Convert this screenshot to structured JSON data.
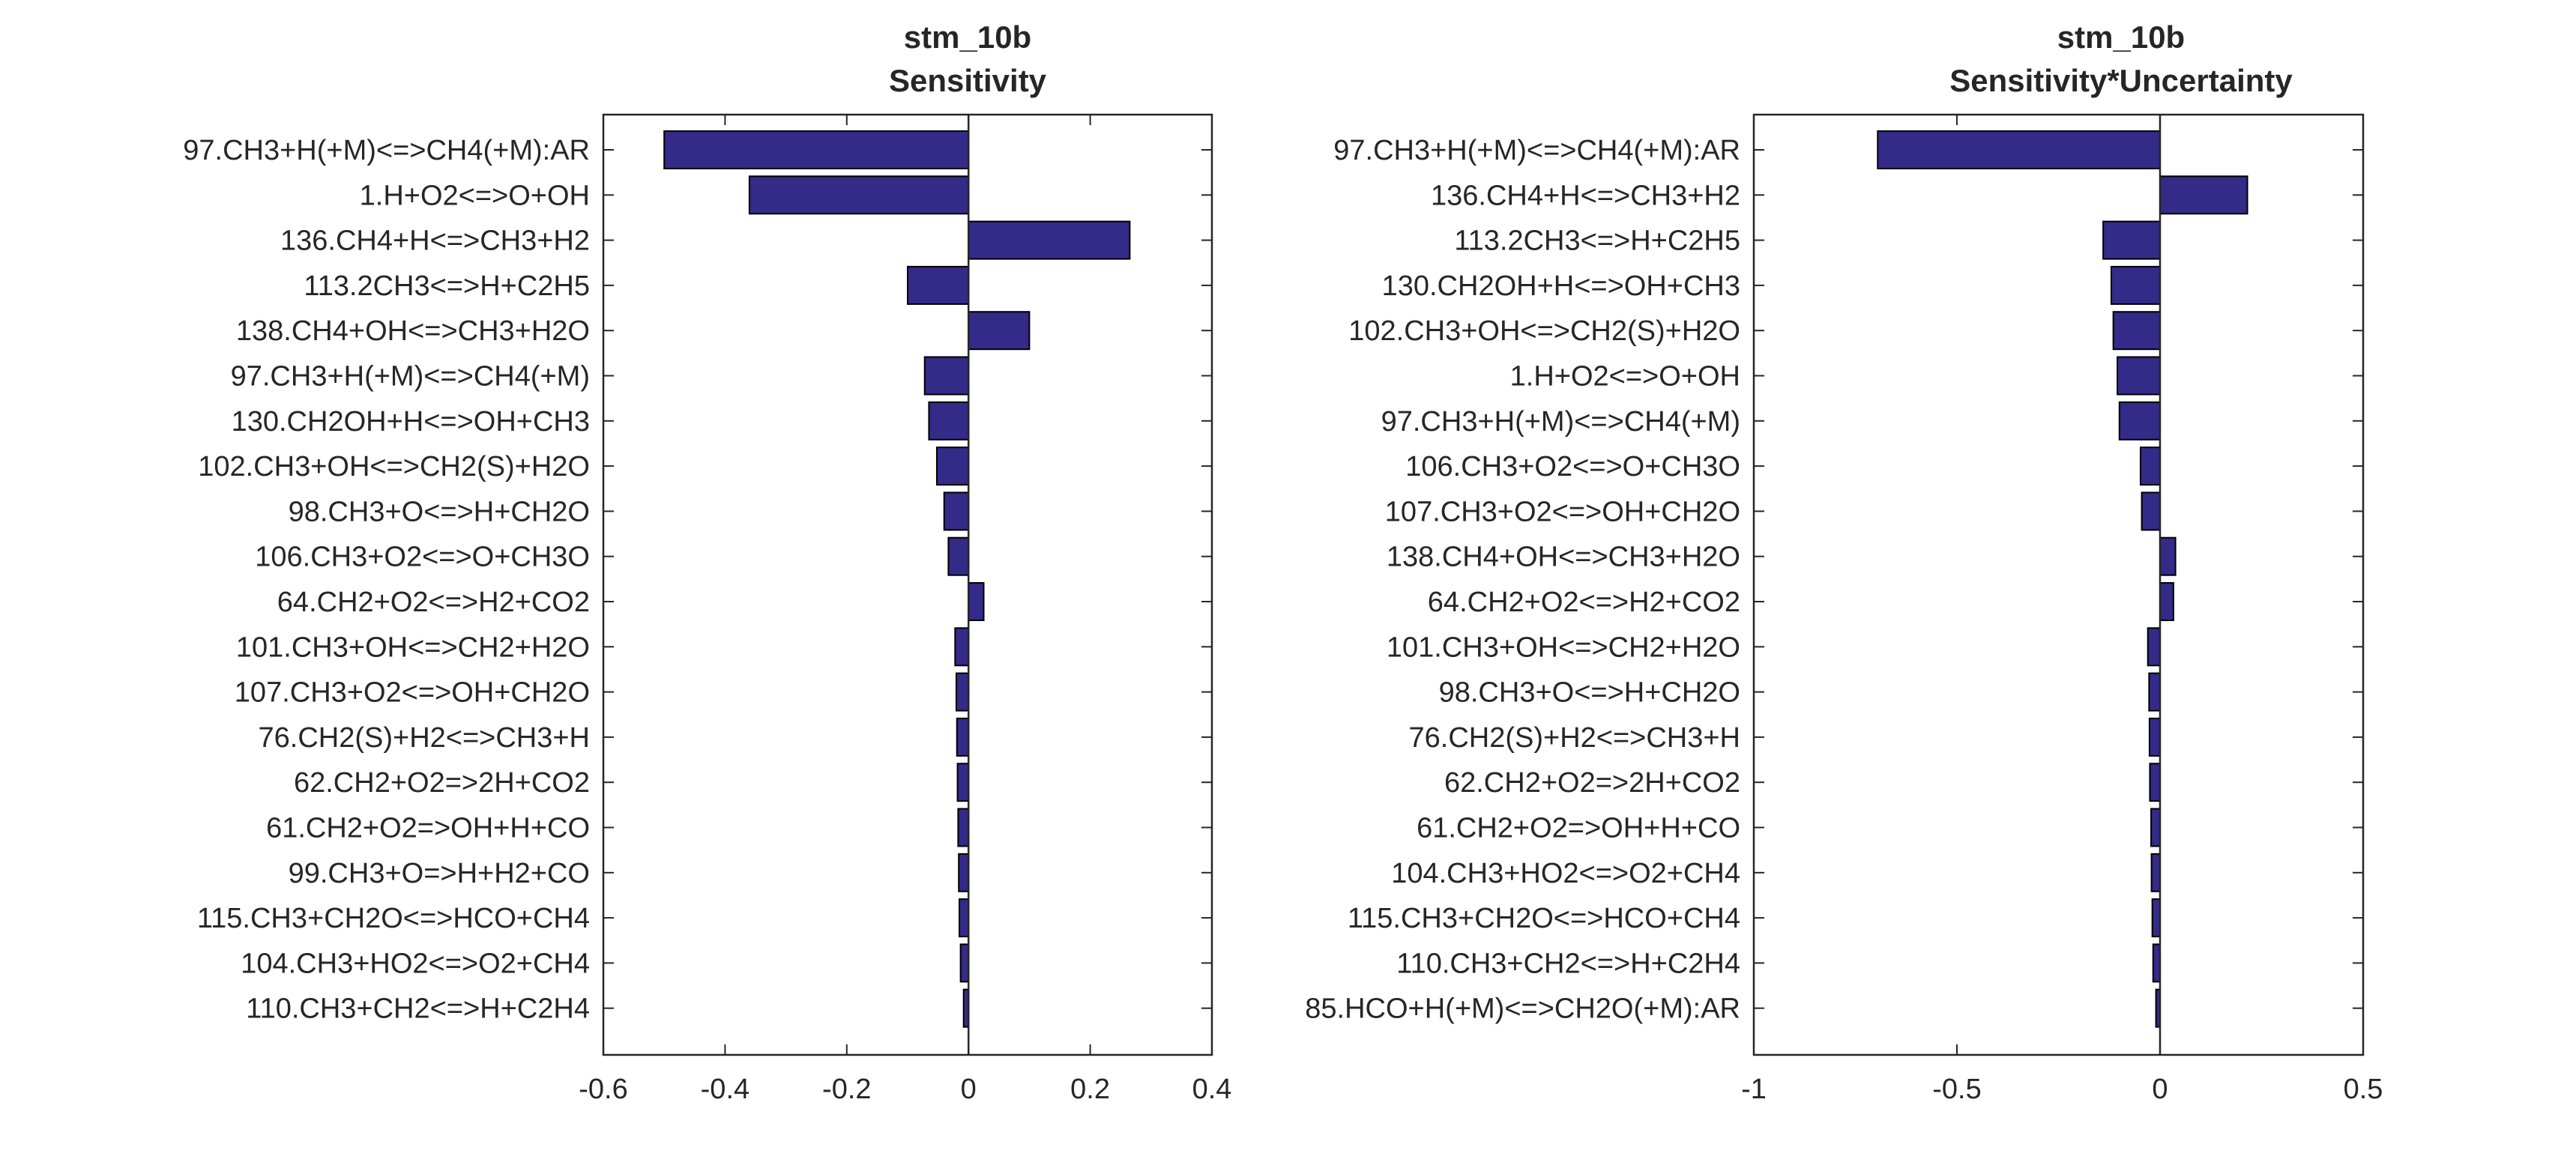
{
  "chart_data": [
    {
      "type": "bar",
      "orientation": "horizontal",
      "title": "stm_10b",
      "subtitle": "Sensitivity",
      "xlim": [
        -0.6,
        0.4
      ],
      "xticks": [
        -0.6,
        -0.4,
        -0.2,
        0,
        0.2,
        0.4
      ],
      "xtick_labels": [
        "-0.6",
        "-0.4",
        "-0.2",
        "0",
        "0.2",
        "0.4"
      ],
      "xlabel": "",
      "ylabel": "",
      "grid": false,
      "bar_color": "#342a87",
      "categories": [
        "97.CH3+H(+M)<=>CH4(+M):AR",
        "1.H+O2<=>O+OH",
        "136.CH4+H<=>CH3+H2",
        "113.2CH3<=>H+C2H5",
        "138.CH4+OH<=>CH3+H2O",
        "97.CH3+H(+M)<=>CH4(+M)",
        "130.CH2OH+H<=>OH+CH3",
        "102.CH3+OH<=>CH2(S)+H2O",
        "98.CH3+O<=>H+CH2O",
        "106.CH3+O2<=>O+CH3O",
        "64.CH2+O2<=>H2+CO2",
        "101.CH3+OH<=>CH2+H2O",
        "107.CH3+O2<=>OH+CH2O",
        "76.CH2(S)+H2<=>CH3+H",
        "62.CH2+O2=>2H+CO2",
        "61.CH2+O2=>OH+H+CO",
        "99.CH3+O=>H+H2+CO",
        "115.CH3+CH2O<=>HCO+CH4",
        "104.CH3+HO2<=>O2+CH4",
        "110.CH3+CH2<=>H+C2H4"
      ],
      "values": [
        -0.5,
        -0.36,
        0.265,
        -0.1,
        0.1,
        -0.072,
        -0.065,
        -0.052,
        -0.04,
        -0.033,
        0.025,
        -0.022,
        -0.02,
        -0.019,
        -0.018,
        -0.017,
        -0.016,
        -0.015,
        -0.013,
        -0.008
      ]
    },
    {
      "type": "bar",
      "orientation": "horizontal",
      "title": "stm_10b",
      "subtitle": "Sensitivity*Uncertainty",
      "xlim": [
        -1,
        0.5
      ],
      "xticks": [
        -1,
        -0.5,
        0,
        0.5
      ],
      "xtick_labels": [
        "-1",
        "-0.5",
        "0",
        "0.5"
      ],
      "xlabel": "",
      "ylabel": "",
      "grid": false,
      "bar_color": "#342a87",
      "categories": [
        "97.CH3+H(+M)<=>CH4(+M):AR",
        "136.CH4+H<=>CH3+H2",
        "113.2CH3<=>H+C2H5",
        "130.CH2OH+H<=>OH+CH3",
        "102.CH3+OH<=>CH2(S)+H2O",
        "1.H+O2<=>O+OH",
        "97.CH3+H(+M)<=>CH4(+M)",
        "106.CH3+O2<=>O+CH3O",
        "107.CH3+O2<=>OH+CH2O",
        "138.CH4+OH<=>CH3+H2O",
        "64.CH2+O2<=>H2+CO2",
        "101.CH3+OH<=>CH2+H2O",
        "98.CH3+O<=>H+CH2O",
        "76.CH2(S)+H2<=>CH3+H",
        "62.CH2+O2=>2H+CO2",
        "61.CH2+O2=>OH+H+CO",
        "104.CH3+HO2<=>O2+CH4",
        "115.CH3+CH2O<=>HCO+CH4",
        "110.CH3+CH2<=>H+C2H4",
        "85.HCO+H(+M)<=>CH2O(+M):AR"
      ],
      "values": [
        -0.695,
        0.215,
        -0.14,
        -0.12,
        -0.115,
        -0.105,
        -0.1,
        -0.048,
        -0.045,
        0.038,
        0.033,
        -0.03,
        -0.027,
        -0.026,
        -0.025,
        -0.022,
        -0.021,
        -0.019,
        -0.017,
        -0.01
      ]
    }
  ]
}
